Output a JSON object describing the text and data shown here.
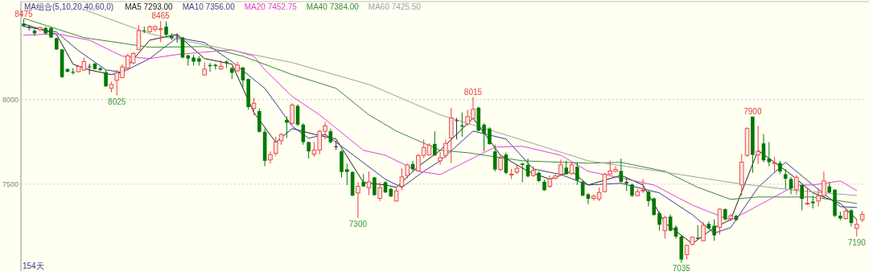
{
  "chart_data": {
    "type": "candlestick",
    "legend_title": "MA组合(5,10,20,40,60,0)",
    "grid": "y",
    "tick_labels": "y",
    "ylim": [
      6985,
      8580
    ],
    "yticks": [
      7500,
      8000
    ],
    "categories": [
      null,
      null,
      null,
      null,
      null,
      null,
      null,
      null,
      null,
      null,
      null,
      null,
      null,
      null,
      null,
      null,
      null,
      null,
      null,
      null,
      null,
      null,
      null,
      null,
      null,
      null,
      null,
      null,
      null,
      null,
      null,
      null,
      null,
      null,
      null,
      null,
      null,
      null,
      null,
      null,
      null,
      null,
      null,
      null,
      null,
      null,
      null,
      null,
      null,
      null,
      null,
      null,
      null,
      null,
      null,
      null,
      null,
      null,
      null,
      null,
      null,
      null,
      null,
      null,
      null,
      null,
      null,
      null,
      null,
      null,
      null,
      null,
      null,
      null,
      null,
      null,
      null,
      null,
      null,
      null,
      null,
      null,
      null,
      null,
      null,
      null,
      null,
      null,
      null,
      null,
      null,
      null,
      null,
      null,
      null,
      null,
      null,
      null,
      null,
      null,
      null,
      null,
      null,
      null,
      null,
      null,
      null,
      null,
      null,
      null,
      null,
      null,
      null,
      null,
      null,
      null,
      null,
      null,
      null,
      null,
      null,
      null,
      null,
      null,
      null,
      null,
      null,
      null,
      null,
      null,
      null,
      null,
      null,
      null,
      null,
      null,
      null,
      null,
      null,
      null,
      null,
      null,
      null,
      null,
      null,
      null,
      null,
      null,
      null,
      null,
      null,
      null,
      null,
      null
    ],
    "ohlc": [
      [
        8450,
        8475,
        8430,
        8435
      ],
      [
        8427,
        8440,
        8408,
        8427
      ],
      [
        8408,
        8419,
        8376,
        8392
      ],
      [
        8416,
        8432,
        8403,
        8427
      ],
      [
        8424,
        8432,
        8384,
        8392
      ],
      [
        8424,
        8432,
        8365,
        8368
      ],
      [
        8363,
        8368,
        8294,
        8297
      ],
      [
        8297,
        8300,
        8130,
        8133
      ],
      [
        8181,
        8186,
        8162,
        8165
      ],
      [
        8165,
        8186,
        8149,
        8159
      ],
      [
        8165,
        8202,
        8162,
        8197
      ],
      [
        8175,
        8249,
        8170,
        8225
      ],
      [
        8194,
        8213,
        8149,
        8194
      ],
      [
        8213,
        8217,
        8178,
        8181
      ],
      [
        8186,
        8194,
        8170,
        8175
      ],
      [
        8162,
        8175,
        8075,
        8079
      ],
      [
        8067,
        8106,
        8043,
        8090
      ],
      [
        8114,
        8175,
        8025,
        8159
      ],
      [
        8130,
        8209,
        8127,
        8194
      ],
      [
        8186,
        8273,
        8181,
        8260
      ],
      [
        8217,
        8281,
        8209,
        8273
      ],
      [
        8297,
        8440,
        8292,
        8408
      ],
      [
        8410,
        8432,
        8392,
        8408
      ],
      [
        8402,
        8440,
        8395,
        8432
      ],
      [
        8416,
        8440,
        8403,
        8432
      ],
      [
        8417,
        8465,
        8340,
        8419
      ],
      [
        8432,
        8463,
        8368,
        8384
      ],
      [
        8376,
        8392,
        8352,
        8365
      ],
      [
        8376,
        8392,
        8337,
        8376
      ],
      [
        8368,
        8371,
        8244,
        8249
      ],
      [
        8262,
        8265,
        8202,
        8243
      ],
      [
        8249,
        8265,
        8202,
        8225
      ],
      [
        8244,
        8257,
        8202,
        8225
      ],
      [
        8146,
        8222,
        8143,
        8181
      ],
      [
        8205,
        8217,
        8165,
        8198
      ],
      [
        8206,
        8213,
        8178,
        8198
      ],
      [
        8181,
        8233,
        8178,
        8197
      ],
      [
        8225,
        8233,
        8186,
        8217
      ],
      [
        8186,
        8194,
        8122,
        8159
      ],
      [
        8170,
        8222,
        8165,
        8205
      ],
      [
        8190,
        8194,
        8067,
        8114
      ],
      [
        8122,
        8122,
        7940,
        7956
      ],
      [
        7948,
        8011,
        7908,
        7979
      ],
      [
        7932,
        7948,
        7805,
        7810
      ],
      [
        7810,
        7829,
        7606,
        7638
      ],
      [
        7643,
        7694,
        7622,
        7675
      ],
      [
        7683,
        7781,
        7667,
        7749
      ],
      [
        7757,
        7802,
        7733,
        7794
      ],
      [
        7881,
        7900,
        7773,
        7864
      ],
      [
        7860,
        7979,
        7852,
        7968
      ],
      [
        7963,
        7971,
        7844,
        7852
      ],
      [
        7852,
        7860,
        7733,
        7749
      ],
      [
        7749,
        7752,
        7651,
        7694
      ],
      [
        7678,
        7749,
        7662,
        7702
      ],
      [
        7702,
        7821,
        7675,
        7813
      ],
      [
        7813,
        7868,
        7765,
        7845
      ],
      [
        7813,
        7829,
        7741,
        7749
      ],
      [
        7721,
        7757,
        7702,
        7721
      ],
      [
        7694,
        7702,
        7540,
        7572
      ],
      [
        7588,
        7619,
        7495,
        7572
      ],
      [
        7572,
        7575,
        7429,
        7432
      ],
      [
        7448,
        7511,
        7300,
        7487
      ],
      [
        7514,
        7559,
        7483,
        7487
      ],
      [
        7479,
        7575,
        7435,
        7514
      ],
      [
        7540,
        7543,
        7432,
        7435
      ],
      [
        7416,
        7511,
        7400,
        7479
      ],
      [
        7511,
        7519,
        7448,
        7451
      ],
      [
        7472,
        7479,
        7424,
        7427
      ],
      [
        7400,
        7479,
        7397,
        7460
      ],
      [
        7487,
        7594,
        7464,
        7543
      ],
      [
        7551,
        7622,
        7535,
        7614
      ],
      [
        7619,
        7638,
        7575,
        7588
      ],
      [
        7579,
        7678,
        7575,
        7670
      ],
      [
        7670,
        7765,
        7654,
        7717
      ],
      [
        7673,
        7741,
        7670,
        7730
      ],
      [
        7738,
        7813,
        7667,
        7670
      ],
      [
        7638,
        7689,
        7614,
        7657
      ],
      [
        7670,
        7765,
        7654,
        7741
      ],
      [
        7773,
        7952,
        7625,
        7892
      ],
      [
        7876,
        7892,
        7765,
        7876
      ],
      [
        7848,
        7924,
        7781,
        7841
      ],
      [
        7857,
        7940,
        7844,
        7900
      ],
      [
        7889,
        8015,
        7884,
        7943
      ],
      [
        7952,
        7959,
        7813,
        7816
      ],
      [
        7852,
        7860,
        7694,
        7800
      ],
      [
        7829,
        7837,
        7733,
        7737
      ],
      [
        7694,
        7733,
        7575,
        7587
      ],
      [
        7587,
        7670,
        7575,
        7654
      ],
      [
        7675,
        7686,
        7559,
        7567
      ],
      [
        7556,
        7590,
        7530,
        7559
      ],
      [
        7571,
        7614,
        7559,
        7594
      ],
      [
        7622,
        7625,
        7511,
        7614
      ],
      [
        7614,
        7651,
        7540,
        7546
      ],
      [
        7551,
        7606,
        7543,
        7581
      ],
      [
        7567,
        7575,
        7511,
        7519
      ],
      [
        7514,
        7527,
        7460,
        7464
      ],
      [
        7487,
        7551,
        7479,
        7530
      ],
      [
        7535,
        7559,
        7527,
        7548
      ],
      [
        7559,
        7646,
        7551,
        7614
      ],
      [
        7598,
        7638,
        7556,
        7559
      ],
      [
        7562,
        7630,
        7556,
        7614
      ],
      [
        7603,
        7630,
        7495,
        7524
      ],
      [
        7514,
        7519,
        7429,
        7432
      ],
      [
        7440,
        7448,
        7381,
        7413
      ],
      [
        7416,
        7440,
        7403,
        7429
      ],
      [
        7413,
        7479,
        7400,
        7451
      ],
      [
        7456,
        7567,
        7451,
        7559
      ],
      [
        7559,
        7638,
        7556,
        7578
      ],
      [
        7575,
        7606,
        7571,
        7587
      ],
      [
        7578,
        7651,
        7508,
        7514
      ],
      [
        7514,
        7543,
        7460,
        7503
      ],
      [
        7498,
        7503,
        7424,
        7432
      ],
      [
        7432,
        7472,
        7429,
        7456
      ],
      [
        7462,
        7530,
        7448,
        7464
      ],
      [
        7456,
        7460,
        7368,
        7400
      ],
      [
        7416,
        7419,
        7313,
        7318
      ],
      [
        7329,
        7337,
        7225,
        7260
      ],
      [
        7225,
        7313,
        7178,
        7302
      ],
      [
        7308,
        7321,
        7222,
        7225
      ],
      [
        7245,
        7257,
        7178,
        7190
      ],
      [
        7190,
        7197,
        7035,
        7054
      ],
      [
        7083,
        7143,
        7054,
        7138
      ],
      [
        7143,
        7190,
        7138,
        7186
      ],
      [
        7183,
        7257,
        7170,
        7176
      ],
      [
        7165,
        7276,
        7162,
        7257
      ],
      [
        7265,
        7279,
        7233,
        7238
      ],
      [
        7254,
        7292,
        7165,
        7197
      ],
      [
        7245,
        7356,
        7202,
        7352
      ],
      [
        7352,
        7356,
        7286,
        7292
      ],
      [
        7297,
        7324,
        7281,
        7313
      ],
      [
        7313,
        7318,
        7281,
        7289
      ],
      [
        7495,
        7678,
        7432,
        7630
      ],
      [
        7670,
        7837,
        7662,
        7829
      ],
      [
        7900,
        7900,
        7567,
        7673
      ],
      [
        7673,
        7845,
        7619,
        7694
      ],
      [
        7741,
        7797,
        7630,
        7641
      ],
      [
        7651,
        7749,
        7606,
        7630
      ],
      [
        7623,
        7662,
        7571,
        7627
      ],
      [
        7625,
        7638,
        7562,
        7575
      ],
      [
        7559,
        7590,
        7471,
        7532
      ],
      [
        7530,
        7543,
        7440,
        7473
      ],
      [
        7467,
        7552,
        7438,
        7541
      ],
      [
        7495,
        7495,
        7345,
        7413
      ],
      [
        7385,
        7479,
        7376,
        7387
      ],
      [
        7397,
        7432,
        7356,
        7387
      ],
      [
        7400,
        7472,
        7368,
        7432
      ],
      [
        7432,
        7575,
        7416,
        7519
      ],
      [
        7487,
        7511,
        7445,
        7451
      ],
      [
        7467,
        7471,
        7305,
        7313
      ],
      [
        7313,
        7337,
        7286,
        7297
      ],
      [
        7297,
        7352,
        7289,
        7340
      ],
      [
        7345,
        7352,
        7249,
        7270
      ],
      [
        7238,
        7292,
        7190,
        7262
      ],
      [
        7289,
        7340,
        7276,
        7321
      ]
    ],
    "series": [
      {
        "type": "line",
        "name": "MA5 7293.00",
        "color": "#222222",
        "values": [
          8448,
          null,
          null,
          null,
          null,
          null,
          8386,
          null,
          null,
          8210,
          null,
          null,
          8176,
          null,
          null,
          null,
          8148,
          null,
          8162,
          null,
          null,
          null,
          null,
          8352,
          null,
          null,
          null,
          null,
          8386,
          null,
          null,
          null,
          null,
          8243,
          null,
          null,
          null,
          null,
          8210,
          null,
          null,
          null,
          7924,
          null,
          null,
          null,
          7748,
          null,
          null,
          7829,
          null,
          null,
          null,
          7795,
          null,
          null,
          null,
          7767,
          null,
          null,
          null,
          null,
          7510,
          null,
          null,
          null,
          7495,
          null,
          7481,
          null,
          null,
          null,
          7605,
          null,
          null,
          null,
          7700,
          null,
          null,
          null,
          null,
          null,
          7890,
          null,
          null,
          null,
          null,
          7671,
          null,
          null,
          null,
          null,
          7576,
          null,
          null,
          null,
          7529,
          null,
          null,
          null,
          7576,
          null,
          null,
          7495,
          null,
          null,
          null,
          null,
          null,
          7552,
          null,
          null,
          null,
          7495,
          null,
          null,
          null,
          7271,
          null,
          null,
          null,
          null,
          7148,
          null,
          null,
          null,
          7243,
          null,
          null,
          7290,
          null,
          null,
          null,
          null,
          7700,
          null,
          null,
          null,
          null,
          null,
          7557,
          null,
          null,
          null,
          7448,
          null,
          null,
          null,
          null,
          7386,
          null,
          null,
          7290,
          null
        ]
      },
      {
        "type": "line",
        "name": "MA10 7356.00",
        "color": "#3c3c96",
        "values": [
          8433,
          null,
          null,
          null,
          null,
          null,
          8400,
          null,
          null,
          null,
          8290,
          null,
          null,
          null,
          null,
          8176,
          null,
          null,
          8162,
          null,
          null,
          null,
          null,
          8243,
          null,
          null,
          null,
          null,
          8367,
          null,
          null,
          null,
          null,
          8338,
          null,
          null,
          null,
          null,
          8224,
          null,
          null,
          null,
          null,
          null,
          8067,
          null,
          null,
          null,
          null,
          7843,
          null,
          null,
          7771,
          null,
          null,
          7795,
          null,
          null,
          null,
          7700,
          null,
          null,
          null,
          null,
          null,
          null,
          7529,
          null,
          null,
          7481,
          null,
          null,
          null,
          7576,
          null,
          null,
          7638,
          null,
          null,
          null,
          null,
          null,
          7814,
          null,
          null,
          null,
          null,
          null,
          7767,
          null,
          null,
          null,
          null,
          7590,
          null,
          null,
          null,
          null,
          7557,
          null,
          null,
          null,
          null,
          7495,
          null,
          null,
          null,
          null,
          null,
          7505,
          null,
          null,
          null,
          null,
          null,
          null,
          7448,
          null,
          null,
          null,
          null,
          null,
          7319,
          null,
          null,
          null,
          7210,
          null,
          null,
          7243,
          null,
          null,
          null,
          null,
          7481,
          null,
          null,
          null,
          null,
          7629,
          null,
          null,
          null,
          null,
          7495,
          null,
          null,
          null,
          null,
          7367,
          null,
          null,
          7362,
          null
        ]
      },
      {
        "type": "line",
        "name": "MA20 7452.75",
        "color": "#e040e0",
        "values": [
          8381,
          null,
          null,
          null,
          null,
          null,
          8390,
          null,
          null,
          null,
          null,
          null,
          8352,
          null,
          null,
          null,
          null,
          null,
          8257,
          null,
          null,
          null,
          null,
          8243,
          null,
          null,
          null,
          null,
          8267,
          null,
          null,
          null,
          null,
          null,
          null,
          null,
          null,
          null,
          8295,
          null,
          null,
          null,
          8257,
          null,
          8176,
          null,
          null,
          null,
          null,
          8019,
          null,
          null,
          null,
          null,
          7910,
          null,
          null,
          null,
          null,
          null,
          null,
          null,
          7700,
          null,
          null,
          null,
          7671,
          null,
          null,
          null,
          null,
          null,
          7576,
          null,
          null,
          null,
          7557,
          null,
          null,
          null,
          null,
          7638,
          null,
          null,
          null,
          null,
          7719,
          null,
          null,
          null,
          null,
          7724,
          null,
          null,
          null,
          null,
          null,
          null,
          7671,
          null,
          null,
          null,
          null,
          7576,
          null,
          null,
          null,
          null,
          7543,
          null,
          null,
          null,
          null,
          null,
          null,
          7495,
          null,
          null,
          null,
          null,
          null,
          null,
          7376,
          null,
          null,
          null,
          null,
          null,
          null,
          7286,
          null,
          null,
          null,
          null,
          null,
          null,
          null,
          null,
          null,
          null,
          null,
          7495,
          null,
          null,
          7495,
          null,
          null,
          null,
          null,
          7519,
          null,
          null,
          7462,
          null
        ]
      },
      {
        "type": "line",
        "name": "MA40 7384.00",
        "color": "#3a8a3a",
        "values": [
          8481,
          null,
          null,
          null,
          null,
          null,
          null,
          null,
          null,
          null,
          null,
          8367,
          null,
          null,
          null,
          null,
          null,
          null,
          null,
          null,
          null,
          null,
          null,
          8310,
          null,
          null,
          null,
          null,
          null,
          null,
          null,
          null,
          null,
          8314,
          null,
          null,
          null,
          null,
          null,
          null,
          8257,
          null,
          null,
          null,
          null,
          null,
          null,
          null,
          null,
          8148,
          null,
          null,
          null,
          null,
          null,
          null,
          null,
          8067,
          null,
          null,
          null,
          null,
          null,
          7910,
          null,
          null,
          null,
          null,
          7814,
          null,
          null,
          null,
          null,
          null,
          null,
          null,
          7700,
          null,
          null,
          null,
          null,
          7686,
          null,
          null,
          null,
          null,
          null,
          null,
          null,
          null,
          null,
          7638,
          null,
          null,
          null,
          null,
          null,
          null,
          null,
          null,
          null,
          null,
          null,
          7624,
          null,
          null,
          null,
          null,
          null,
          7629,
          null,
          null,
          null,
          null,
          null,
          null,
          null,
          7576,
          null,
          null,
          null,
          null,
          null,
          7481,
          null,
          null,
          null,
          null,
          null,
          7410,
          null,
          null,
          null,
          null,
          7424,
          null,
          null,
          null,
          null,
          null,
          null,
          null,
          null,
          null,
          7424,
          null,
          null,
          null,
          null,
          null,
          null,
          null,
          7386,
          null
        ]
      },
      {
        "type": "line",
        "name": "MA60 7425.50",
        "color": "#a0a0a0",
        "values": [
          null,
          null,
          null,
          null,
          null,
          null,
          null,
          null,
          null,
          null,
          null,
          8533,
          null,
          null,
          null,
          null,
          null,
          null,
          null,
          null,
          null,
          null,
          null,
          8390,
          null,
          null,
          null,
          null,
          null,
          null,
          null,
          null,
          null,
          null,
          null,
          null,
          8305,
          null,
          null,
          null,
          null,
          null,
          null,
          null,
          null,
          null,
          null,
          null,
          null,
          8219,
          null,
          null,
          null,
          null,
          null,
          null,
          null,
          null,
          null,
          null,
          null,
          null,
          null,
          8090,
          null,
          null,
          null,
          null,
          null,
          null,
          null,
          null,
          null,
          null,
          null,
          null,
          7910,
          null,
          null,
          null,
          null,
          null,
          null,
          null,
          null,
          null,
          null,
          null,
          null,
          7781,
          null,
          null,
          null,
          null,
          null,
          null,
          null,
          null,
          null,
          null,
          null,
          null,
          null,
          7638,
          null,
          null,
          null,
          null,
          null,
          null,
          null,
          null,
          null,
          null,
          null,
          null,
          7576,
          null,
          null,
          null,
          null,
          null,
          null,
          null,
          null,
          null,
          null,
          null,
          null,
          7510,
          null,
          null,
          null,
          null,
          null,
          null,
          null,
          null,
          null,
          null,
          null,
          7462,
          null,
          null,
          null,
          null,
          null,
          null,
          null,
          null,
          null,
          null,
          7433,
          null
        ]
      }
    ],
    "annotations": [
      {
        "text": "8475",
        "y": 8475
      },
      {
        "text": "8025",
        "y": 8025
      },
      {
        "text": "8465",
        "y": 8465
      },
      {
        "text": "7300",
        "y": 7300
      },
      {
        "text": "8015",
        "y": 8015
      },
      {
        "text": "7035",
        "y": 7035
      },
      {
        "text": "7900",
        "y": 7900
      },
      {
        "text": "7190",
        "y": 7190
      },
      "154天"
    ]
  }
}
